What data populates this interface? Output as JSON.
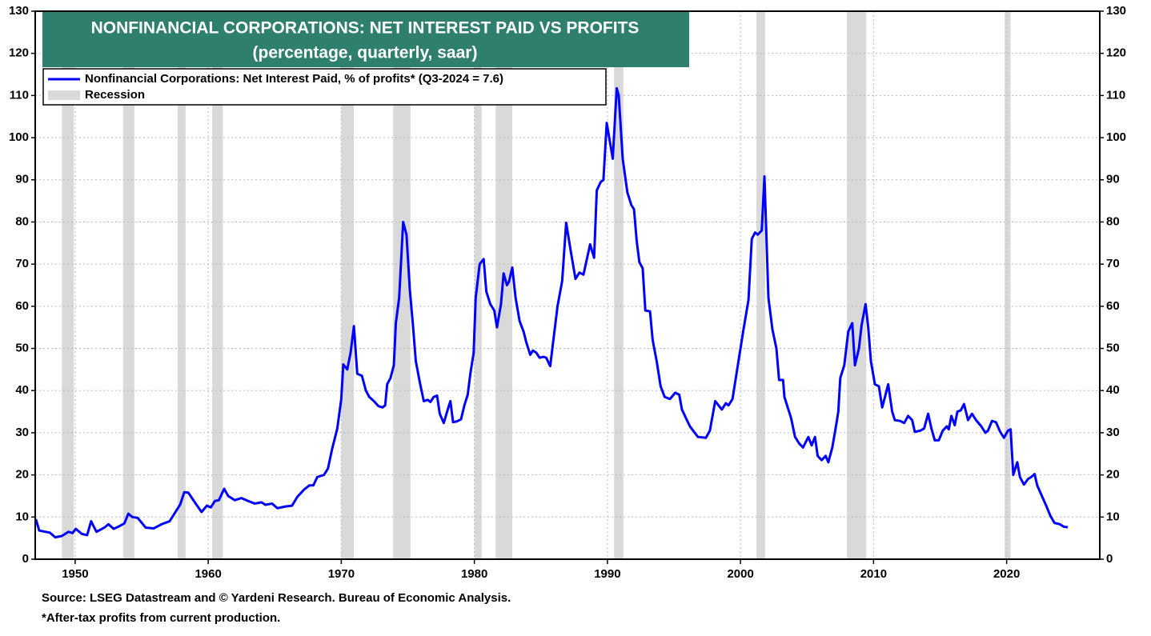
{
  "chart_data": {
    "type": "line",
    "title": "NONFINANCIAL CORPORATIONS: NET INTEREST PAID VS PROFITS",
    "subtitle": "(percentage, quarterly, saar)",
    "source": "Source: LSEG Datastream and © Yardeni Research. Bureau of Economic Analysis.",
    "note": "*After-tax profits from current production.",
    "recession_label": "Recession",
    "recession_color": "#d9d9d9",
    "recessions": [
      {
        "start": 1949.0,
        "end": 1949.9
      },
      {
        "start": 1953.6,
        "end": 1954.45
      },
      {
        "start": 1957.7,
        "end": 1958.3
      },
      {
        "start": 1960.3,
        "end": 1961.1
      },
      {
        "start": 1970.0,
        "end": 1970.95
      },
      {
        "start": 1973.9,
        "end": 1975.2
      },
      {
        "start": 1980.0,
        "end": 1980.55
      },
      {
        "start": 1981.6,
        "end": 1982.85
      },
      {
        "start": 1990.5,
        "end": 1991.2
      },
      {
        "start": 2001.2,
        "end": 2001.85
      },
      {
        "start": 2008.0,
        "end": 2009.45
      },
      {
        "start": 2019.85,
        "end": 2020.3
      }
    ],
    "xlim": [
      1947,
      2027
    ],
    "xticks": [
      1950,
      1960,
      1970,
      1980,
      1990,
      2000,
      2010,
      2020
    ],
    "ylim": [
      0,
      130
    ],
    "yticks": [
      0,
      10,
      20,
      30,
      40,
      50,
      60,
      70,
      80,
      90,
      100,
      110,
      120,
      130
    ],
    "y2lim": [
      0,
      130
    ],
    "y2ticks": [
      0,
      10,
      20,
      30,
      40,
      50,
      60,
      70,
      80,
      90,
      100,
      110,
      120,
      130
    ],
    "grid": true,
    "legend": "top-left",
    "x": [
      1947.05,
      1947.3,
      1948.1,
      1948.5,
      1949.0,
      1949.5,
      1949.8,
      1950.05,
      1950.5,
      1950.9,
      1951.2,
      1951.6,
      1952.2,
      1952.5,
      1952.9,
      1953.3,
      1953.7,
      1954.0,
      1954.3,
      1954.7,
      1955.3,
      1955.9,
      1956.5,
      1957.1,
      1957.5,
      1957.9,
      1958.2,
      1958.5,
      1959.1,
      1959.5,
      1959.9,
      1960.2,
      1960.5,
      1960.8,
      1961.2,
      1961.5,
      1962.0,
      1962.5,
      1963.0,
      1963.5,
      1964.0,
      1964.3,
      1964.8,
      1965.2,
      1965.8,
      1966.3,
      1966.7,
      1967.2,
      1967.6,
      1967.9,
      1968.2,
      1968.7,
      1969.0,
      1969.3,
      1969.7,
      1970.0,
      1970.15,
      1970.45,
      1970.7,
      1970.95,
      1971.2,
      1971.55,
      1971.85,
      1972.1,
      1972.45,
      1972.8,
      1973.1,
      1973.3,
      1973.45,
      1973.7,
      1973.95,
      1974.1,
      1974.35,
      1974.65,
      1974.9,
      1975.15,
      1975.4,
      1975.6,
      1975.9,
      1976.2,
      1976.5,
      1976.7,
      1976.95,
      1977.2,
      1977.4,
      1977.7,
      1978.0,
      1978.2,
      1978.4,
      1978.7,
      1979.0,
      1979.25,
      1979.5,
      1979.7,
      1979.95,
      1980.1,
      1980.4,
      1980.7,
      1980.9,
      1981.2,
      1981.5,
      1981.7,
      1982.0,
      1982.2,
      1982.45,
      1982.6,
      1982.85,
      1983.1,
      1983.4,
      1983.7,
      1983.9,
      1984.2,
      1984.4,
      1984.65,
      1984.9,
      1985.2,
      1985.4,
      1985.7,
      1986.25,
      1986.6,
      1986.9,
      1987.25,
      1987.6,
      1987.9,
      1988.2,
      1988.7,
      1989.0,
      1989.2,
      1989.5,
      1989.7,
      1989.95,
      1990.4,
      1990.7,
      1990.85,
      1991.15,
      1991.5,
      1991.8,
      1992.0,
      1992.2,
      1992.4,
      1992.65,
      1992.85,
      1993.2,
      1993.4,
      1993.7,
      1994.0,
      1994.3,
      1994.7,
      1995.1,
      1995.4,
      1995.6,
      1995.9,
      1996.2,
      1996.8,
      1997.4,
      1997.7,
      1998.1,
      1998.6,
      1998.9,
      1999.1,
      1999.4,
      1999.8,
      2000.2,
      2000.6,
      2000.85,
      2001.1,
      2001.3,
      2001.6,
      2001.8,
      2002.1,
      2002.4,
      2002.7,
      2002.9,
      2003.2,
      2003.3,
      2003.6,
      2003.8,
      2004.1,
      2004.4,
      2004.7,
      2005.1,
      2005.35,
      2005.6,
      2005.8,
      2006.1,
      2006.4,
      2006.6,
      2006.9,
      2007.2,
      2007.35,
      2007.5,
      2007.8,
      2008.1,
      2008.4,
      2008.6,
      2008.9,
      2009.1,
      2009.4,
      2009.6,
      2009.8,
      2010.1,
      2010.4,
      2010.65,
      2010.9,
      2011.1,
      2011.4,
      2011.6,
      2012.0,
      2012.3,
      2012.6,
      2012.9,
      2013.1,
      2013.5,
      2013.8,
      2014.1,
      2014.35,
      2014.6,
      2014.9,
      2015.2,
      2015.5,
      2015.65,
      2015.85,
      2016.1,
      2016.3,
      2016.55,
      2016.8,
      2017.1,
      2017.4,
      2017.7,
      2018.1,
      2018.4,
      2018.6,
      2018.9,
      2019.2,
      2019.5,
      2019.8,
      2020.1,
      2020.3,
      2020.5,
      2020.8,
      2021.0,
      2021.3,
      2021.6,
      2021.85,
      2022.1,
      2022.3,
      2022.65,
      2023.0,
      2023.3,
      2023.6,
      2024.0,
      2024.3,
      2024.6
    ],
    "series": [
      {
        "name": "Nonfinancial Corporations: Net Interest Paid, % of profits* (Q3-2024 = 7.6)",
        "color": "#0000ff",
        "values": [
          9.5,
          6.8,
          6.3,
          5.2,
          5.5,
          6.5,
          6.2,
          7.2,
          6.0,
          5.7,
          9,
          6.5,
          7.5,
          8.3,
          7.2,
          7.8,
          8.5,
          10.8,
          10,
          9.8,
          7.5,
          7.3,
          8.3,
          9,
          11,
          13,
          15.9,
          15.8,
          13,
          11.2,
          12.7,
          12.3,
          13.8,
          14,
          16.7,
          15,
          14,
          14.5,
          13.8,
          13.2,
          13.5,
          12.9,
          13.2,
          12.1,
          12.5,
          12.7,
          14.8,
          16.5,
          17.5,
          17.5,
          19.5,
          20,
          21.5,
          26,
          31,
          38,
          46.2,
          45,
          49,
          55.3,
          44,
          43.5,
          40,
          38.5,
          37.5,
          36.3,
          36,
          36.5,
          41.5,
          43,
          46,
          56,
          62,
          80,
          77,
          64,
          55,
          47,
          42,
          37.5,
          37.8,
          37.3,
          38.5,
          38.8,
          34.5,
          32.3,
          35.5,
          37.5,
          32.5,
          32.7,
          33.2,
          36.5,
          39,
          44,
          49,
          62,
          70,
          71.2,
          63.5,
          60.5,
          59,
          55,
          60.5,
          67.8,
          65,
          65.8,
          69.2,
          62,
          56.5,
          54,
          51.5,
          48.5,
          49.5,
          49,
          47.8,
          48,
          47.8,
          45.8,
          60,
          66,
          79.8,
          73,
          66.5,
          68,
          67.5,
          74.7,
          71.5,
          87.5,
          89.5,
          90,
          103.5,
          95,
          111.7,
          110,
          95,
          87,
          84,
          83,
          75.5,
          70.5,
          69,
          59,
          58.8,
          52,
          47,
          41,
          38.5,
          38,
          39.5,
          39,
          35.5,
          33.5,
          31.5,
          29,
          28.8,
          30.5,
          37.5,
          35.5,
          37,
          36.5,
          38,
          46,
          54,
          61.5,
          76,
          77.5,
          77,
          78,
          90.8,
          62,
          54.5,
          50,
          42.5,
          42.5,
          38.5,
          35.5,
          33.5,
          29,
          27.5,
          26.5,
          29,
          27,
          29,
          24.5,
          23.5,
          24.5,
          23,
          26.5,
          32,
          35,
          43,
          46,
          54,
          56,
          46,
          50,
          55.5,
          60.5,
          55,
          47,
          41.5,
          41,
          36,
          39,
          41.5,
          35,
          33,
          32.8,
          32.3,
          34,
          33,
          30.2,
          30.5,
          31,
          34.5,
          31,
          28.2,
          28.2,
          30.5,
          31.5,
          30.8,
          34,
          31.8,
          35,
          35.3,
          36.8,
          33,
          34.5,
          33,
          31.5,
          30,
          30.5,
          32.8,
          32.5,
          30.3,
          28.8,
          30.5,
          30.8,
          20,
          23,
          19.5,
          17.7,
          19,
          19.5,
          20.2,
          17.5,
          15,
          12.5,
          10.2,
          8.6,
          8.3,
          7.7,
          7.6
        ]
      }
    ]
  }
}
